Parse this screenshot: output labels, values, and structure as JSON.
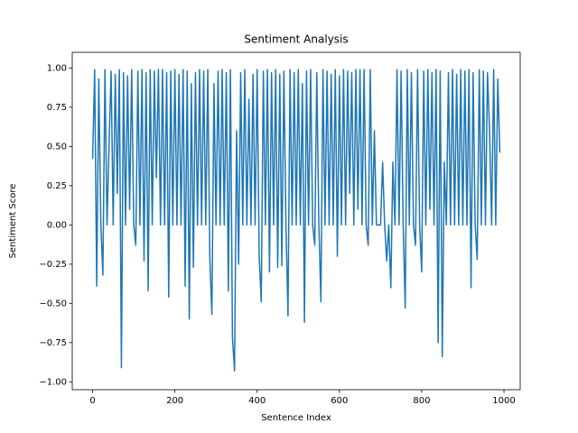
{
  "chart_data": {
    "type": "line",
    "title": "Sentiment Analysis",
    "x_label": "Sentence Index",
    "y_label": "Sentiment Score",
    "color": "#1f77b4",
    "x": [
      0,
      5,
      10,
      15,
      20,
      25,
      30,
      35,
      40,
      45,
      50,
      55,
      60,
      65,
      70,
      75,
      80,
      85,
      90,
      95,
      100,
      105,
      110,
      115,
      120,
      125,
      130,
      135,
      140,
      145,
      150,
      155,
      160,
      165,
      170,
      175,
      180,
      185,
      190,
      195,
      200,
      205,
      210,
      215,
      220,
      225,
      230,
      235,
      240,
      245,
      250,
      255,
      260,
      265,
      270,
      275,
      280,
      285,
      290,
      295,
      300,
      305,
      310,
      315,
      320,
      325,
      330,
      335,
      340,
      345,
      350,
      355,
      360,
      365,
      370,
      375,
      380,
      385,
      390,
      395,
      400,
      405,
      410,
      415,
      420,
      425,
      430,
      435,
      440,
      445,
      450,
      455,
      460,
      465,
      470,
      475,
      480,
      485,
      490,
      495,
      500,
      505,
      510,
      515,
      520,
      525,
      530,
      535,
      540,
      545,
      550,
      555,
      560,
      565,
      570,
      575,
      580,
      585,
      590,
      595,
      600,
      605,
      610,
      615,
      620,
      625,
      630,
      635,
      640,
      645,
      650,
      655,
      660,
      665,
      670,
      675,
      680,
      685,
      690,
      695,
      700,
      705,
      710,
      715,
      720,
      725,
      730,
      735,
      740,
      745,
      750,
      755,
      760,
      765,
      770,
      775,
      780,
      785,
      790,
      795,
      800,
      805,
      810,
      815,
      820,
      825,
      830,
      835,
      840,
      845,
      850,
      855,
      860,
      865,
      870,
      875,
      880,
      885,
      890,
      895,
      900,
      905,
      910,
      915,
      920,
      925,
      930,
      935,
      940,
      945,
      950,
      955,
      960,
      965,
      970,
      975,
      980,
      985,
      990
    ],
    "values": [
      0.42,
      0.99,
      -0.39,
      0.93,
      0.0,
      -0.32,
      0.99,
      0.0,
      0.51,
      0.98,
      0.0,
      0.96,
      0.2,
      0.99,
      -0.91,
      0.97,
      0.0,
      0.95,
      0.1,
      0.99,
      0.0,
      -0.13,
      0.98,
      0.0,
      0.99,
      -0.23,
      0.97,
      -0.42,
      0.99,
      0.0,
      0.98,
      0.3,
      0.99,
      0.0,
      0.99,
      0.0,
      0.97,
      -0.46,
      0.98,
      0.0,
      0.99,
      0.0,
      0.96,
      0.0,
      0.99,
      -0.39,
      0.98,
      -0.6,
      0.9,
      -0.27,
      0.97,
      0.0,
      0.99,
      0.0,
      0.98,
      0.0,
      0.99,
      -0.22,
      -0.57,
      0.9,
      0.0,
      0.98,
      0.0,
      0.99,
      0.0,
      0.97,
      -0.42,
      0.99,
      -0.72,
      -0.93,
      0.6,
      -0.25,
      0.97,
      0.0,
      0.99,
      0.0,
      0.8,
      0.0,
      0.96,
      0.0,
      0.99,
      -0.2,
      -0.49,
      0.98,
      0.0,
      0.99,
      -0.3,
      0.97,
      0.0,
      0.99,
      -0.27,
      0.96,
      -0.26,
      0.98,
      0.0,
      -0.58,
      0.99,
      0.0,
      0.97,
      0.0,
      0.99,
      0.0,
      0.9,
      -0.62,
      0.98,
      0.0,
      0.99,
      0.0,
      -0.13,
      0.97,
      0.0,
      -0.49,
      0.99,
      0.0,
      0.98,
      0.0,
      0.96,
      0.0,
      0.99,
      -0.2,
      0.95,
      0.0,
      0.99,
      0.0,
      0.98,
      0.2,
      0.97,
      0.0,
      0.99,
      0.1,
      0.99,
      0.0,
      0.99,
      0.0,
      -0.13,
      0.99,
      0.0,
      0.6,
      0.0,
      0.0,
      0.0,
      0.4,
      0.0,
      -0.23,
      0.0,
      -0.4,
      0.4,
      0.0,
      0.99,
      0.0,
      0.98,
      0.0,
      -0.53,
      0.99,
      0.0,
      0.97,
      0.0,
      -0.13,
      0.99,
      0.0,
      -0.3,
      0.98,
      0.0,
      0.99,
      0.1,
      0.97,
      0.0,
      0.99,
      -0.75,
      0.98,
      -0.84,
      0.4,
      0.0,
      0.97,
      0.0,
      0.99,
      0.0,
      0.96,
      0.0,
      0.99,
      0.0,
      0.98,
      0.0,
      0.99,
      -0.4,
      0.97,
      0.0,
      -0.22,
      0.99,
      0.0,
      0.98,
      0.0,
      0.97,
      0.6,
      0.0,
      0.99,
      0.0,
      0.93,
      0.46
    ],
    "xlim": [
      -49.5,
      1039.5
    ],
    "ylim": [
      -1.05,
      1.1
    ],
    "xticks": [
      0,
      200,
      400,
      600,
      800,
      1000
    ],
    "yticks": [
      {
        "value": -1,
        "label": "−1.00"
      },
      {
        "value": -0.75,
        "label": "−0.75"
      },
      {
        "value": -0.5,
        "label": "−0.50"
      },
      {
        "value": -0.25,
        "label": "−0.25"
      },
      {
        "value": 0,
        "label": "0.00"
      },
      {
        "value": 0.25,
        "label": "0.25"
      },
      {
        "value": 0.5,
        "label": "0.50"
      },
      {
        "value": 0.75,
        "label": "0.75"
      },
      {
        "value": 1,
        "label": "1.00"
      }
    ],
    "grid": false
  }
}
